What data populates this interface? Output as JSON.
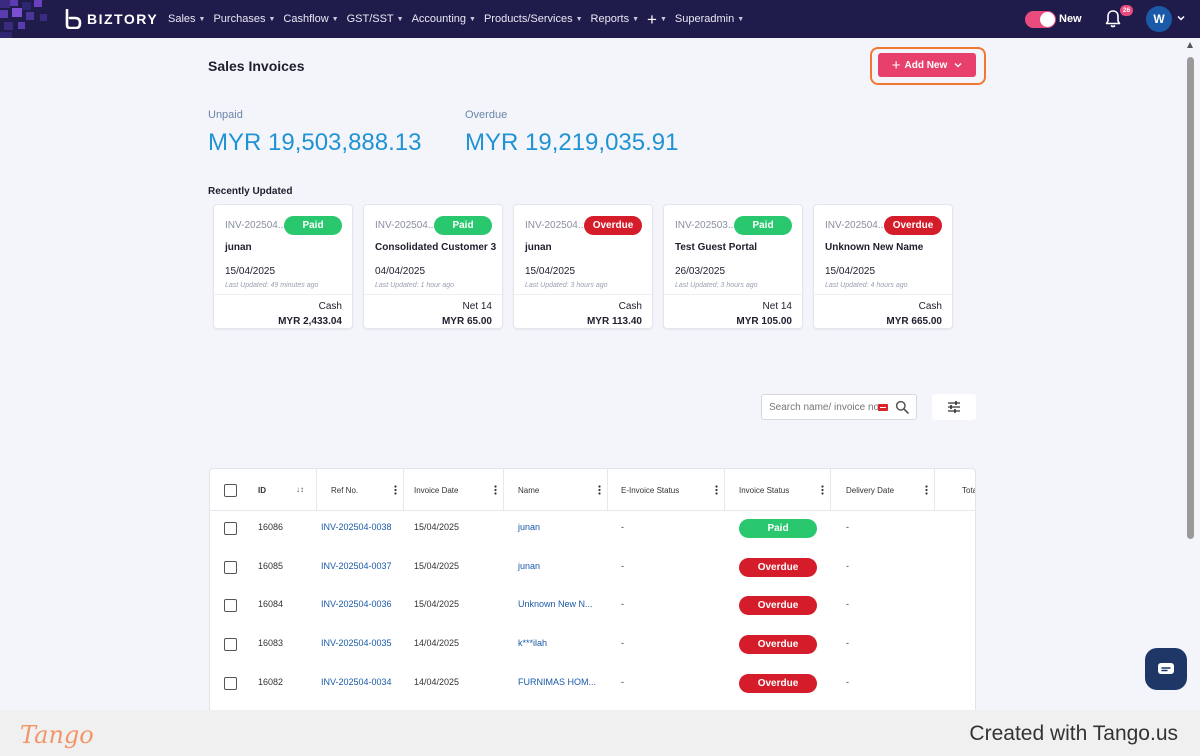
{
  "nav": {
    "brand": "BIZTORY",
    "menu": [
      {
        "label": "Sales"
      },
      {
        "label": "Purchases"
      },
      {
        "label": "Cashflow"
      },
      {
        "label": "GST/SST"
      },
      {
        "label": "Accounting"
      },
      {
        "label": "Products/Services"
      },
      {
        "label": "Reports"
      },
      {
        "label": "+"
      },
      {
        "label": "Superadmin"
      }
    ],
    "toggle_label": "New",
    "notification_count": "26",
    "avatar_initial": "W",
    "colors": {
      "bg": "#1f1c4c",
      "accent": "#e94b7e"
    }
  },
  "page": {
    "title": "Sales Invoices",
    "add_button_label": "Add New"
  },
  "stats": {
    "unpaid_label": "Unpaid",
    "unpaid_value": "MYR 19,503,888.13",
    "overdue_label": "Overdue",
    "overdue_value": "MYR 19,219,035.91"
  },
  "recent": {
    "title": "Recently Updated",
    "cards": [
      {
        "invoice": "INV-202504...",
        "status": "Paid",
        "name": "junan",
        "date": "15/04/2025",
        "updated": "Last Updated: 49 minutes ago",
        "term": "Cash",
        "amount": "MYR 2,433.04"
      },
      {
        "invoice": "INV-202504...",
        "status": "Paid",
        "name": "Consolidated Customer 3",
        "date": "04/04/2025",
        "updated": "Last Updated: 1 hour ago",
        "term": "Net 14",
        "amount": "MYR 65.00"
      },
      {
        "invoice": "INV-202504...",
        "status": "Overdue",
        "name": "junan",
        "date": "15/04/2025",
        "updated": "Last Updated: 3 hours ago",
        "term": "Cash",
        "amount": "MYR 113.40"
      },
      {
        "invoice": "INV-202503...",
        "status": "Paid",
        "name": "Test Guest Portal",
        "date": "26/03/2025",
        "updated": "Last Updated: 3 hours ago",
        "term": "Net 14",
        "amount": "MYR 105.00"
      },
      {
        "invoice": "INV-202504...",
        "status": "Overdue",
        "name": "Unknown New Name",
        "date": "15/04/2025",
        "updated": "Last Updated: 4 hours ago",
        "term": "Cash",
        "amount": "MYR 665.00"
      }
    ]
  },
  "search": {
    "placeholder": "Search name/ invoice no."
  },
  "table": {
    "columns": [
      "ID",
      "Ref No.",
      "Invoice Date",
      "Name",
      "E-Invoice Status",
      "Invoice Status",
      "Delivery Date",
      "Tota"
    ],
    "rows": [
      {
        "id": "16086",
        "ref": "INV-202504-0038",
        "date": "15/04/2025",
        "name": "junan",
        "einvoice": "-",
        "status": "Paid",
        "delivery": "-"
      },
      {
        "id": "16085",
        "ref": "INV-202504-0037",
        "date": "15/04/2025",
        "name": "junan",
        "einvoice": "-",
        "status": "Overdue",
        "delivery": "-"
      },
      {
        "id": "16084",
        "ref": "INV-202504-0036",
        "date": "15/04/2025",
        "name": "Unknown New N...",
        "einvoice": "-",
        "status": "Overdue",
        "delivery": "-"
      },
      {
        "id": "16083",
        "ref": "INV-202504-0035",
        "date": "14/04/2025",
        "name": "k***ilah",
        "einvoice": "-",
        "status": "Overdue",
        "delivery": "-"
      },
      {
        "id": "16082",
        "ref": "INV-202504-0034",
        "date": "14/04/2025",
        "name": "FURNIMAS HOM...",
        "einvoice": "-",
        "status": "Overdue",
        "delivery": "-"
      }
    ]
  },
  "footer": {
    "logo_text": "Tango",
    "credit": "Created with Tango.us"
  },
  "colors": {
    "paid": "#2ac86e",
    "overdue": "#d41c2a",
    "primary": "#e8406c",
    "stat": "#1f93d3"
  }
}
